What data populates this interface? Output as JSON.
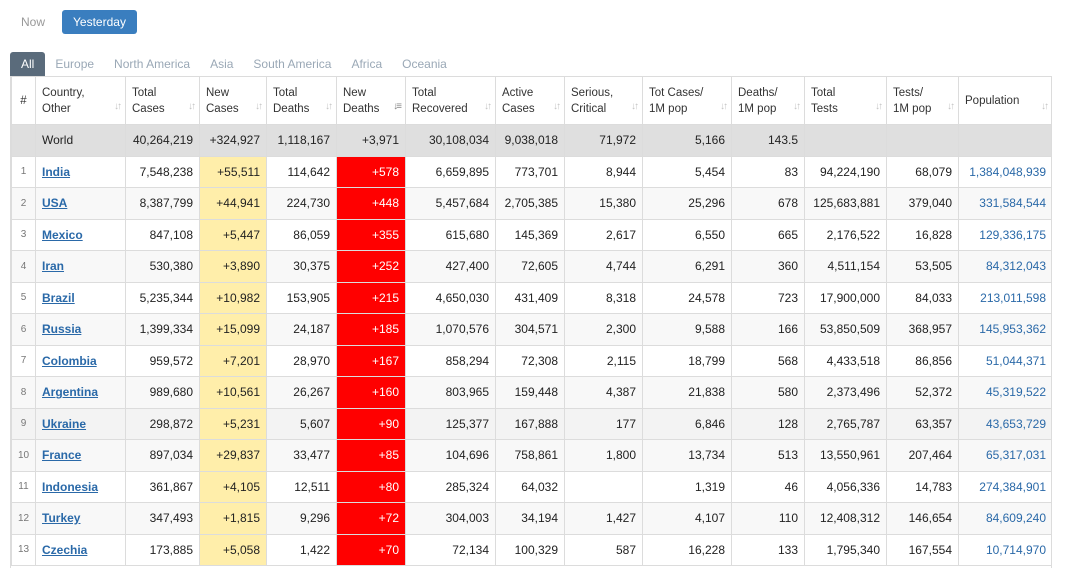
{
  "time_toggle": {
    "now": "Now",
    "yesterday": "Yesterday",
    "active": "yesterday"
  },
  "region_tabs": [
    "All",
    "Europe",
    "North America",
    "Asia",
    "South America",
    "Africa",
    "Oceania"
  ],
  "active_region": "All",
  "columns": [
    {
      "key": "idx",
      "l1": "#",
      "l2": ""
    },
    {
      "key": "country",
      "l1": "Country,",
      "l2": "Other"
    },
    {
      "key": "total_cases",
      "l1": "Total",
      "l2": "Cases"
    },
    {
      "key": "new_cases",
      "l1": "New",
      "l2": "Cases"
    },
    {
      "key": "total_deaths",
      "l1": "Total",
      "l2": "Deaths"
    },
    {
      "key": "new_deaths",
      "l1": "New",
      "l2": "Deaths"
    },
    {
      "key": "total_recovered",
      "l1": "Total",
      "l2": "Recovered"
    },
    {
      "key": "active_cases",
      "l1": "Active",
      "l2": "Cases"
    },
    {
      "key": "serious",
      "l1": "Serious,",
      "l2": "Critical"
    },
    {
      "key": "cases_1m",
      "l1": "Tot Cases/",
      "l2": "1M pop"
    },
    {
      "key": "deaths_1m",
      "l1": "Deaths/",
      "l2": "1M pop"
    },
    {
      "key": "total_tests",
      "l1": "Total",
      "l2": "Tests"
    },
    {
      "key": "tests_1m",
      "l1": "Tests/",
      "l2": "1M pop"
    },
    {
      "key": "population",
      "l1": "",
      "l2": "Population"
    }
  ],
  "world": {
    "country": "World",
    "total_cases": "40,264,219",
    "new_cases": "+324,927",
    "total_deaths": "1,118,167",
    "new_deaths": "+3,971",
    "total_recovered": "30,108,034",
    "active_cases": "9,038,018",
    "serious": "71,972",
    "cases_1m": "5,166",
    "deaths_1m": "143.5",
    "total_tests": "",
    "tests_1m": "",
    "population": ""
  },
  "rows": [
    {
      "idx": "1",
      "country": "India",
      "total_cases": "7,548,238",
      "new_cases": "+55,511",
      "total_deaths": "114,642",
      "new_deaths": "+578",
      "total_recovered": "6,659,895",
      "active_cases": "773,701",
      "serious": "8,944",
      "cases_1m": "5,454",
      "deaths_1m": "83",
      "total_tests": "94,224,190",
      "tests_1m": "68,079",
      "population": "1,384,048,939"
    },
    {
      "idx": "2",
      "country": "USA",
      "total_cases": "8,387,799",
      "new_cases": "+44,941",
      "total_deaths": "224,730",
      "new_deaths": "+448",
      "total_recovered": "5,457,684",
      "active_cases": "2,705,385",
      "serious": "15,380",
      "cases_1m": "25,296",
      "deaths_1m": "678",
      "total_tests": "125,683,881",
      "tests_1m": "379,040",
      "population": "331,584,544"
    },
    {
      "idx": "3",
      "country": "Mexico",
      "total_cases": "847,108",
      "new_cases": "+5,447",
      "total_deaths": "86,059",
      "new_deaths": "+355",
      "total_recovered": "615,680",
      "active_cases": "145,369",
      "serious": "2,617",
      "cases_1m": "6,550",
      "deaths_1m": "665",
      "total_tests": "2,176,522",
      "tests_1m": "16,828",
      "population": "129,336,175"
    },
    {
      "idx": "4",
      "country": "Iran",
      "total_cases": "530,380",
      "new_cases": "+3,890",
      "total_deaths": "30,375",
      "new_deaths": "+252",
      "total_recovered": "427,400",
      "active_cases": "72,605",
      "serious": "4,744",
      "cases_1m": "6,291",
      "deaths_1m": "360",
      "total_tests": "4,511,154",
      "tests_1m": "53,505",
      "population": "84,312,043"
    },
    {
      "idx": "5",
      "country": "Brazil",
      "total_cases": "5,235,344",
      "new_cases": "+10,982",
      "total_deaths": "153,905",
      "new_deaths": "+215",
      "total_recovered": "4,650,030",
      "active_cases": "431,409",
      "serious": "8,318",
      "cases_1m": "24,578",
      "deaths_1m": "723",
      "total_tests": "17,900,000",
      "tests_1m": "84,033",
      "population": "213,011,598"
    },
    {
      "idx": "6",
      "country": "Russia",
      "total_cases": "1,399,334",
      "new_cases": "+15,099",
      "total_deaths": "24,187",
      "new_deaths": "+185",
      "total_recovered": "1,070,576",
      "active_cases": "304,571",
      "serious": "2,300",
      "cases_1m": "9,588",
      "deaths_1m": "166",
      "total_tests": "53,850,509",
      "tests_1m": "368,957",
      "population": "145,953,362"
    },
    {
      "idx": "7",
      "country": "Colombia",
      "total_cases": "959,572",
      "new_cases": "+7,201",
      "total_deaths": "28,970",
      "new_deaths": "+167",
      "total_recovered": "858,294",
      "active_cases": "72,308",
      "serious": "2,115",
      "cases_1m": "18,799",
      "deaths_1m": "568",
      "total_tests": "4,433,518",
      "tests_1m": "86,856",
      "population": "51,044,371"
    },
    {
      "idx": "8",
      "country": "Argentina",
      "total_cases": "989,680",
      "new_cases": "+10,561",
      "total_deaths": "26,267",
      "new_deaths": "+160",
      "total_recovered": "803,965",
      "active_cases": "159,448",
      "serious": "4,387",
      "cases_1m": "21,838",
      "deaths_1m": "580",
      "total_tests": "2,373,496",
      "tests_1m": "52,372",
      "population": "45,319,522"
    },
    {
      "idx": "9",
      "country": "Ukraine",
      "total_cases": "298,872",
      "new_cases": "+5,231",
      "total_deaths": "5,607",
      "new_deaths": "+90",
      "total_recovered": "125,377",
      "active_cases": "167,888",
      "serious": "177",
      "cases_1m": "6,846",
      "deaths_1m": "128",
      "total_tests": "2,765,787",
      "tests_1m": "63,357",
      "population": "43,653,729"
    },
    {
      "idx": "10",
      "country": "France",
      "total_cases": "897,034",
      "new_cases": "+29,837",
      "total_deaths": "33,477",
      "new_deaths": "+85",
      "total_recovered": "104,696",
      "active_cases": "758,861",
      "serious": "1,800",
      "cases_1m": "13,734",
      "deaths_1m": "513",
      "total_tests": "13,550,961",
      "tests_1m": "207,464",
      "population": "65,317,031"
    },
    {
      "idx": "11",
      "country": "Indonesia",
      "total_cases": "361,867",
      "new_cases": "+4,105",
      "total_deaths": "12,511",
      "new_deaths": "+80",
      "total_recovered": "285,324",
      "active_cases": "64,032",
      "serious": "",
      "cases_1m": "1,319",
      "deaths_1m": "46",
      "total_tests": "4,056,336",
      "tests_1m": "14,783",
      "population": "274,384,901"
    },
    {
      "idx": "12",
      "country": "Turkey",
      "total_cases": "347,493",
      "new_cases": "+1,815",
      "total_deaths": "9,296",
      "new_deaths": "+72",
      "total_recovered": "304,003",
      "active_cases": "34,194",
      "serious": "1,427",
      "cases_1m": "4,107",
      "deaths_1m": "110",
      "total_tests": "12,408,312",
      "tests_1m": "146,654",
      "population": "84,609,240"
    },
    {
      "idx": "13",
      "country": "Czechia",
      "total_cases": "173,885",
      "new_cases": "+5,058",
      "total_deaths": "1,422",
      "new_deaths": "+70",
      "total_recovered": "72,134",
      "active_cases": "100,329",
      "serious": "587",
      "cases_1m": "16,228",
      "deaths_1m": "133",
      "total_tests": "1,795,340",
      "tests_1m": "167,554",
      "population": "10,714,970"
    }
  ],
  "colors": {
    "new_cases_bg": "#ffeeaa",
    "new_deaths_bg": "#ff0000",
    "link": "#2a69a8",
    "world_bg": "#dfdfdf",
    "active_tab": "#5a6b7b",
    "active_toggle": "#3a7ebf"
  }
}
